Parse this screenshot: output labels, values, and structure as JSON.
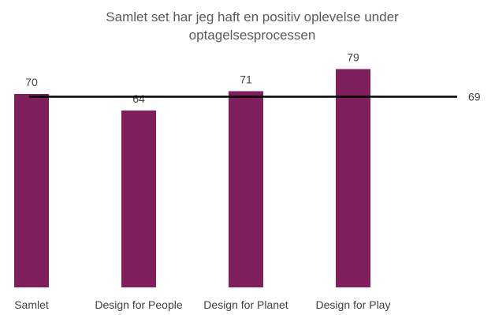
{
  "chart_data": {
    "type": "bar",
    "title": "Samlet set har jeg haft en positiv oplevelse under optagelsesprocessen",
    "categories": [
      "Samlet",
      "Design for People",
      "Design for Planet",
      "Design for Play"
    ],
    "values": [
      70,
      64,
      71,
      79
    ],
    "reference_line": {
      "value": 69,
      "label": "69",
      "color": "#000000"
    },
    "bar_color": "#7f1f5c",
    "ylim": [
      0,
      85
    ],
    "xlabel": "",
    "ylabel": "",
    "grid": false,
    "legend": "none"
  }
}
